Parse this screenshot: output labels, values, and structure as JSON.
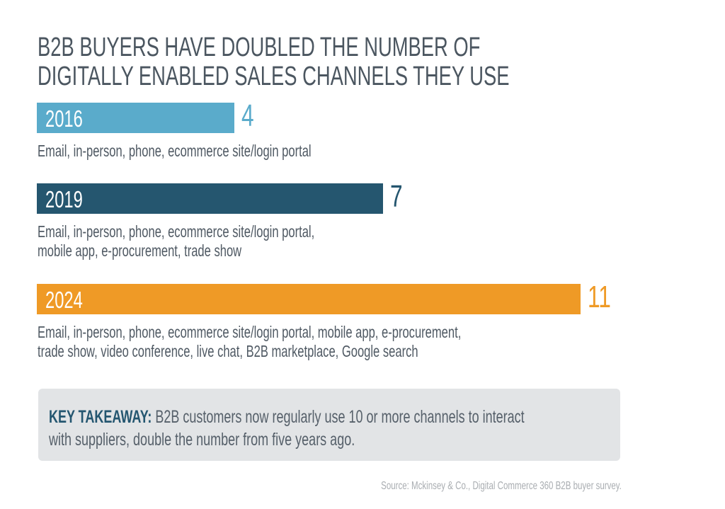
{
  "chart_data": {
    "type": "bar",
    "orientation": "horizontal",
    "title": "B2B BUYERS HAVE DOUBLED THE NUMBER OF DIGITALLY ENABLED SALES CHANNELS THEY USE",
    "title_lines": [
      "B2B BUYERS HAVE DOUBLED THE NUMBER OF",
      "DIGITALLY ENABLED SALES CHANNELS THEY USE"
    ],
    "categories": [
      "2016",
      "2019",
      "2024"
    ],
    "values": [
      4,
      7,
      11
    ],
    "value_labels": [
      "4",
      "7",
      "11"
    ],
    "colors": [
      "#5aabcb",
      "#25566f",
      "#ef9a26"
    ],
    "descriptions": [
      [
        "Email, in-person, phone, ecommerce site/login portal"
      ],
      [
        "Email, in-person, phone, ecommerce site/login portal,",
        "mobile app, e-procurement, trade show"
      ],
      [
        "Email, in-person, phone, ecommerce site/login portal, mobile app, e-procurement,",
        "trade show, video conference, live chat, B2B marketplace, Google search"
      ]
    ],
    "xlim": [
      0,
      11
    ],
    "grid": false
  },
  "takeaway": {
    "label": "KEY TAKEAWAY:",
    "line1": "B2B customers now regularly use 10 or more channels to interact",
    "line2": "with suppliers, double the number from five years ago."
  },
  "source": "Source: Mckinsey & Co., Digital Commerce 360 B2B buyer survey."
}
